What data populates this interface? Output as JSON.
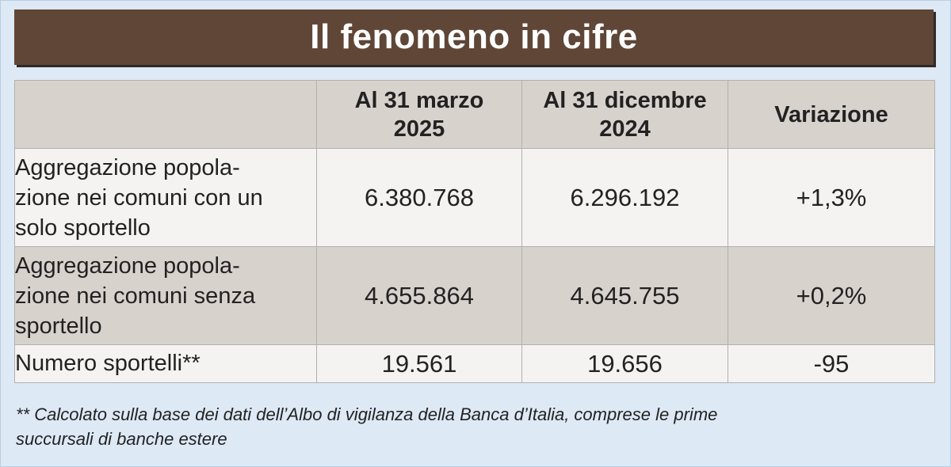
{
  "title": "Il fenomeno in cifre",
  "table": {
    "headers": [
      "",
      "Al 31 marzo 2025",
      "Al 31 dicembre 2024",
      "Variazione"
    ],
    "header_lines": {
      "col1": [
        "Al 31 marzo",
        "2025"
      ],
      "col2": [
        "Al 31 dicembre",
        "2024"
      ],
      "col3": [
        "Variazione"
      ]
    },
    "rows": [
      {
        "label": "Aggregazione popolazione nei comuni con un solo sportello",
        "label_lines": [
          "Aggregazione popola-",
          "zione nei comuni con un",
          "solo sportello"
        ],
        "mar_2025": "6.380.768",
        "dec_2024": "6.296.192",
        "variation": "+1,3%"
      },
      {
        "label": "Aggregazione popolazione nei comuni senza sportello",
        "label_lines": [
          "Aggregazione popola-",
          "zione nei comuni senza",
          "sportello"
        ],
        "mar_2025": "4.655.864",
        "dec_2024": "4.645.755",
        "variation": "+0,2%"
      },
      {
        "label": "Numero sportelli**",
        "label_lines": [
          "Numero sportelli**"
        ],
        "mar_2025": "19.561",
        "dec_2024": "19.656",
        "variation": "-95"
      }
    ]
  },
  "footnote": {
    "line1": "** Calcolato sulla base dei dati dell’Albo di vigilanza della Banca d’Italia, comprese le prime",
    "line2": "succursali di banche estere"
  },
  "colors": {
    "title_bar": "#5f4637",
    "background": "#dde9f5",
    "header_fill": "#d8d2cd",
    "light_row": "#f4f3f2"
  },
  "chart_data": {
    "type": "table",
    "title": "Il fenomeno in cifre",
    "columns": [
      "Al 31 marzo 2025",
      "Al 31 dicembre 2024",
      "Variazione"
    ],
    "rows": [
      {
        "label": "Aggregazione popolazione nei comuni con un solo sportello",
        "values": [
          6380768,
          6296192,
          "+1,3%"
        ]
      },
      {
        "label": "Aggregazione popolazione nei comuni senza sportello",
        "values": [
          4655864,
          4645755,
          "+0,2%"
        ]
      },
      {
        "label": "Numero sportelli**",
        "values": [
          19561,
          19656,
          -95
        ]
      }
    ]
  }
}
